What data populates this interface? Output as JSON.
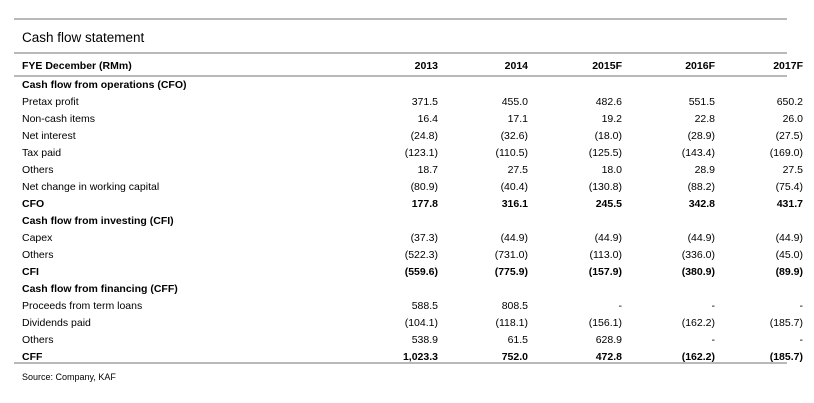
{
  "title": "Cash flow statement",
  "header": {
    "label": "FYE December (RMm)",
    "years": [
      "2013",
      "2014",
      "2015F",
      "2016F",
      "2017F"
    ]
  },
  "sections": [
    {
      "heading": "Cash flow from operations (CFO)",
      "rows": [
        {
          "label": "Pretax profit",
          "values": [
            "371.5",
            "455.0",
            "482.6",
            "551.5",
            "650.2"
          ]
        },
        {
          "label": "Non-cash items",
          "values": [
            "16.4",
            "17.1",
            "19.2",
            "22.8",
            "26.0"
          ]
        },
        {
          "label": "Net interest",
          "values": [
            "(24.8)",
            "(32.6)",
            "(18.0)",
            "(28.9)",
            "(27.5)"
          ]
        },
        {
          "label": "Tax paid",
          "values": [
            "(123.1)",
            "(110.5)",
            "(125.5)",
            "(143.4)",
            "(169.0)"
          ]
        },
        {
          "label": "Others",
          "values": [
            "18.7",
            "27.5",
            "18.0",
            "28.9",
            "27.5"
          ]
        },
        {
          "label": "Net change in working capital",
          "values": [
            "(80.9)",
            "(40.4)",
            "(130.8)",
            "(88.2)",
            "(75.4)"
          ]
        }
      ],
      "total": {
        "label": "CFO",
        "values": [
          "177.8",
          "316.1",
          "245.5",
          "342.8",
          "431.7"
        ]
      }
    },
    {
      "heading": "Cash flow from investing (CFI)",
      "rows": [
        {
          "label": "Capex",
          "values": [
            "(37.3)",
            "(44.9)",
            "(44.9)",
            "(44.9)",
            "(44.9)"
          ]
        },
        {
          "label": "Others",
          "values": [
            "(522.3)",
            "(731.0)",
            "(113.0)",
            "(336.0)",
            "(45.0)"
          ]
        }
      ],
      "total": {
        "label": "CFI",
        "values": [
          "(559.6)",
          "(775.9)",
          "(157.9)",
          "(380.9)",
          "(89.9)"
        ]
      }
    },
    {
      "heading": "Cash flow from financing (CFF)",
      "rows": [
        {
          "label": "Proceeds from term loans",
          "values": [
            "588.5",
            "808.5",
            "-",
            "-",
            "-"
          ]
        },
        {
          "label": "Dividends paid",
          "values": [
            "(104.1)",
            "(118.1)",
            "(156.1)",
            "(162.2)",
            "(185.7)"
          ]
        },
        {
          "label": "Others",
          "values": [
            "538.9",
            "61.5",
            "628.9",
            "-",
            "-"
          ]
        }
      ],
      "total": {
        "label": "CFF",
        "values": [
          "1,023.3",
          "752.0",
          "472.8",
          "(162.2)",
          "(185.7)"
        ]
      }
    }
  ],
  "source": "Source:  Company, KAF"
}
